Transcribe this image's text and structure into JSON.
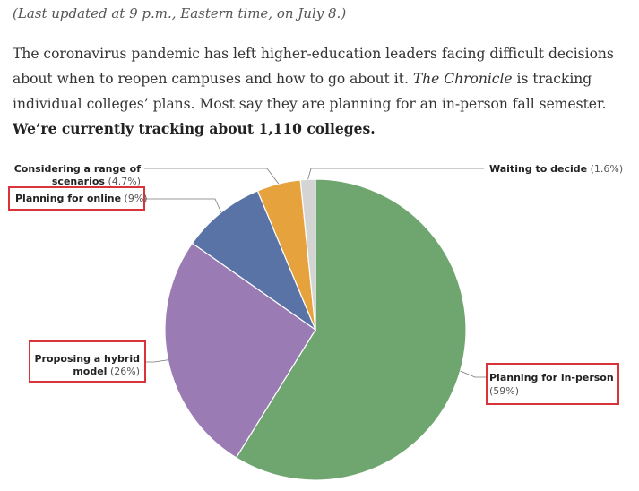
{
  "header": {
    "updated": "(Last updated at 9 p.m., Eastern time, on July 8.)"
  },
  "intro": {
    "part1": "The coronavirus pandemic has left higher-education leaders facing difficult decisions about when to reopen campuses and how to go about it. ",
    "publication": "The Chronicle",
    "part2": " is tracking individual colleges’ plans. Most say they are planning for an in-person fall semester. ",
    "bold": "We’re currently tracking about 1,110 colleges."
  },
  "chart_data": {
    "type": "pie",
    "title": "",
    "slices": [
      {
        "label": "Planning for in-person",
        "value": 59,
        "pct_text": "(59%)",
        "color": "#6fa56f"
      },
      {
        "label": "Proposing a hybrid model",
        "value": 26,
        "pct_text": "(26%)",
        "color": "#9a7bb3"
      },
      {
        "label": "Planning for online",
        "value": 9,
        "pct_text": "(9%)",
        "color": "#5a73a6"
      },
      {
        "label": "Considering a range of scenarios",
        "value": 4.7,
        "pct_text": "(4.7%)",
        "color": "#e6a23c"
      },
      {
        "label": "Waiting to decide",
        "value": 1.6,
        "pct_text": "(1.6%)",
        "color": "#d4d4d4"
      }
    ],
    "highlight_color": "#d9343a"
  }
}
